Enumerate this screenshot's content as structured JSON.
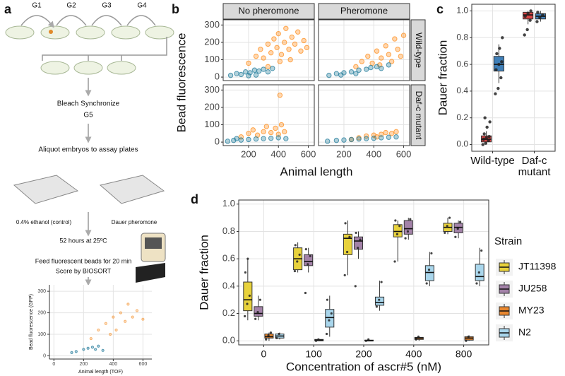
{
  "diagram": {
    "panel_label": "a",
    "generations": [
      "G1",
      "G2",
      "G3",
      "G4"
    ],
    "bleach": "Bleach Synchronize",
    "g5": "G5",
    "aliquot": "Aliquot embryos to assay plates",
    "control_plate": "0.4% ethanol (control)",
    "pheromone_plate": "Dauer pheromone",
    "incubation": "52 hours at 25ºC",
    "feeding": "Feed fluorescent beads for 20 min",
    "scoring": "Score by BIOSORT"
  },
  "chart_data": [
    {
      "type": "scatter",
      "xlabel": "Animal length (TOF)",
      "ylabel": "Bead fluorescence (GFP)",
      "xlim": [
        -30,
        660
      ],
      "ylim": [
        -15,
        330
      ],
      "xticks": [
        0,
        200,
        400,
        600
      ],
      "yticks": [
        0,
        100,
        200,
        300
      ],
      "grid": true,
      "series": [
        {
          "color": "#f5a04a",
          "x": [
            250,
            300,
            350,
            400,
            420,
            450,
            480,
            500,
            530,
            560,
            600,
            380
          ],
          "y": [
            80,
            120,
            150,
            180,
            120,
            200,
            160,
            240,
            180,
            210,
            170,
            100
          ]
        },
        {
          "color": "#2a7f9e",
          "x": [
            150,
            200,
            230,
            260,
            280,
            300,
            330,
            120
          ],
          "y": [
            20,
            30,
            35,
            40,
            30,
            45,
            25,
            15
          ]
        }
      ]
    },
    {
      "type": "facet_scatter",
      "panel_label": "b",
      "xlabel": "Animal length",
      "ylabel": "Bead fluorescence",
      "columns": [
        "No pheromone",
        "Pheromone"
      ],
      "xlim": [
        30,
        640
      ],
      "ylim": [
        -20,
        330
      ],
      "xticks": [
        200,
        400,
        600
      ],
      "yticks": [
        0,
        100,
        200,
        300
      ],
      "grid": true,
      "rows": [
        {
          "label": "Wild-type",
          "cells": [
            {
              "series": [
                {
                  "color": "#ff8c1a",
                  "x": [
                    200,
                    250,
                    280,
                    300,
                    330,
                    350,
                    370,
                    390,
                    400,
                    420,
                    440,
                    450,
                    470,
                    490,
                    510,
                    530,
                    550,
                    570,
                    590,
                    330,
                    410,
                    480
                  ],
                  "y": [
                    80,
                    120,
                    160,
                    110,
                    190,
                    140,
                    220,
                    170,
                    250,
                    130,
                    200,
                    280,
                    160,
                    230,
                    190,
                    260,
                    150,
                    210,
                    170,
                    60,
                    90,
                    100
                  ]
                },
                {
                  "color": "#1f7a99",
                  "x": [
                    80,
                    120,
                    150,
                    180,
                    210,
                    240,
                    270,
                    300,
                    330,
                    360,
                    200,
                    250
                  ],
                  "y": [
                    10,
                    20,
                    15,
                    30,
                    25,
                    40,
                    35,
                    45,
                    30,
                    50,
                    8,
                    12
                  ]
                }
              ]
            },
            {
              "series": [
                {
                  "color": "#ff8c1a",
                  "x": [
                    280,
                    320,
                    360,
                    390,
                    420,
                    450,
                    480,
                    500,
                    520,
                    540,
                    560,
                    580,
                    600,
                    440
                  ],
                  "y": [
                    60,
                    90,
                    120,
                    80,
                    150,
                    110,
                    180,
                    130,
                    90,
                    220,
                    160,
                    120,
                    240,
                    70
                  ]
                },
                {
                  "color": "#1f7a99",
                  "x": [
                    100,
                    150,
                    200,
                    250,
                    300,
                    350,
                    380,
                    420,
                    450,
                    500,
                    180,
                    280
                  ],
                  "y": [
                    10,
                    20,
                    25,
                    30,
                    40,
                    45,
                    55,
                    60,
                    50,
                    70,
                    12,
                    20
                  ]
                }
              ]
            }
          ]
        },
        {
          "label": "Daf-c mutant",
          "cells": [
            {
              "series": [
                {
                  "color": "#ff8c1a",
                  "x": [
                    150,
                    200,
                    230,
                    260,
                    300,
                    320,
                    350,
                    380,
                    400,
                    420,
                    440,
                    410
                  ],
                  "y": [
                    30,
                    50,
                    70,
                    40,
                    60,
                    90,
                    55,
                    80,
                    45,
                    100,
                    60,
                    270
                  ]
                },
                {
                  "color": "#1f7a99",
                  "x": [
                    60,
                    100,
                    150,
                    200,
                    250,
                    300,
                    350,
                    400,
                    450,
                    120
                  ],
                  "y": [
                    5,
                    10,
                    12,
                    15,
                    18,
                    20,
                    22,
                    25,
                    20,
                    20
                  ]
                }
              ]
            },
            {
              "series": [
                {
                  "color": "#ff8c1a",
                  "x": [
                    250,
                    300,
                    350,
                    400,
                    450,
                    480,
                    520,
                    550,
                    420
                  ],
                  "y": [
                    15,
                    25,
                    35,
                    40,
                    45,
                    55,
                    50,
                    60,
                    30
                  ]
                },
                {
                  "color": "#1f7a99",
                  "x": [
                    90,
                    150,
                    200,
                    250,
                    300,
                    350,
                    400,
                    450,
                    500,
                    550
                  ],
                  "y": [
                    5,
                    10,
                    12,
                    15,
                    18,
                    20,
                    22,
                    25,
                    28,
                    30
                  ]
                }
              ]
            }
          ]
        }
      ]
    },
    {
      "type": "box",
      "panel_label": "c",
      "ylabel": "Dauer fraction",
      "categories": [
        "Wild-type",
        "Daf-c\nmutant"
      ],
      "ylim": [
        -0.05,
        1.05
      ],
      "yticks": [
        {
          "value": 0,
          "label": "0.0"
        },
        0.2,
        0.4,
        0.6,
        0.8,
        {
          "value": 1,
          "label": "1.0"
        }
      ],
      "grid": true,
      "series": [
        {
          "color": "#d94545",
          "boxes": [
            {
              "whisker_low": 0,
              "q1": 0.02,
              "median": 0.04,
              "q3": 0.065,
              "whisker_high": 0.1,
              "points": [
                0,
                0.01,
                0.03,
                0.04,
                0.05,
                0.06,
                0.08,
                0.13,
                0.17,
                0.2
              ]
            },
            {
              "whisker_low": 0.9,
              "q1": 0.94,
              "median": 0.97,
              "q3": 0.99,
              "whisker_high": 1,
              "points": [
                0.82,
                0.86,
                0.93,
                0.96,
                0.98,
                1
              ]
            }
          ]
        },
        {
          "color": "#3f7fb8",
          "boxes": [
            {
              "whisker_low": 0.46,
              "q1": 0.55,
              "median": 0.6,
              "q3": 0.66,
              "whisker_high": 0.75,
              "points": [
                0.38,
                0.42,
                0.5,
                0.56,
                0.6,
                0.62,
                0.68,
                0.72,
                0.8
              ]
            },
            {
              "whisker_low": 0.92,
              "q1": 0.94,
              "median": 0.96,
              "q3": 0.98,
              "whisker_high": 1,
              "points": [
                0.92,
                0.95,
                0.97,
                0.99
              ]
            }
          ]
        }
      ]
    },
    {
      "type": "box",
      "panel_label": "d",
      "xlabel": "Concentration of ascr#5 (nM)",
      "ylabel": "Dauer fraction",
      "legend_title": "Strain",
      "categories": [
        "0",
        "100",
        "200",
        "400",
        "800"
      ],
      "ylim": [
        -0.03,
        1.03
      ],
      "yticks": [
        {
          "value": 0,
          "label": "0.0"
        },
        0.2,
        0.4,
        0.6,
        0.8,
        {
          "value": 1,
          "label": "1.0"
        }
      ],
      "grid": true,
      "series": [
        {
          "name": "JT11398",
          "color": "#e8d23c",
          "boxes": [
            {
              "whisker_low": 0.15,
              "q1": 0.22,
              "median": 0.3,
              "q3": 0.43,
              "whisker_high": 0.6,
              "points": [
                0.18,
                0.27,
                0.33,
                0.5,
                0.6
              ]
            },
            {
              "whisker_low": 0.5,
              "q1": 0.52,
              "median": 0.6,
              "q3": 0.68,
              "whisker_high": 0.72,
              "points": [
                0.51,
                0.58,
                0.63,
                0.7
              ]
            },
            {
              "whisker_low": 0.48,
              "q1": 0.63,
              "median": 0.75,
              "q3": 0.78,
              "whisker_high": 0.88,
              "points": [
                0.48,
                0.65,
                0.76,
                0.86
              ]
            },
            {
              "whisker_low": 0.58,
              "q1": 0.76,
              "median": 0.8,
              "q3": 0.85,
              "whisker_high": 0.88,
              "points": [
                0.58,
                0.78,
                0.84,
                0.88
              ]
            },
            {
              "whisker_low": 0.78,
              "q1": 0.8,
              "median": 0.83,
              "q3": 0.86,
              "whisker_high": 0.9,
              "points": [
                0.79,
                0.84,
                0.9
              ]
            }
          ]
        },
        {
          "name": "JU258",
          "color": "#a382a8",
          "boxes": [
            {
              "whisker_low": 0.15,
              "q1": 0.18,
              "median": 0.2,
              "q3": 0.25,
              "whisker_high": 0.33,
              "points": [
                0.16,
                0.21,
                0.3
              ]
            },
            {
              "whisker_low": 0.5,
              "q1": 0.55,
              "median": 0.58,
              "q3": 0.63,
              "whisker_high": 0.68,
              "points": [
                0.35,
                0.56,
                0.62,
                0.67
              ]
            },
            {
              "whisker_low": 0.6,
              "q1": 0.67,
              "median": 0.73,
              "q3": 0.76,
              "whisker_high": 0.8,
              "points": [
                0.4,
                0.68,
                0.74,
                0.79
              ]
            },
            {
              "whisker_low": 0.74,
              "q1": 0.78,
              "median": 0.82,
              "q3": 0.88,
              "whisker_high": 0.9,
              "points": [
                0.75,
                0.8,
                0.89
              ]
            },
            {
              "whisker_low": 0.75,
              "q1": 0.79,
              "median": 0.83,
              "q3": 0.86,
              "whisker_high": 0.88,
              "points": [
                0.76,
                0.82,
                0.87
              ]
            }
          ]
        },
        {
          "name": "MY23",
          "color": "#e8872f",
          "boxes": [
            {
              "whisker_low": 0,
              "q1": 0.02,
              "median": 0.03,
              "q3": 0.05,
              "whisker_high": 0.06,
              "points": [
                0.01,
                0.04,
                0.06
              ]
            },
            {
              "whisker_low": 0,
              "q1": 0,
              "median": 0.005,
              "q3": 0.01,
              "whisker_high": 0.01,
              "points": [
                0,
                0.01
              ]
            },
            {
              "whisker_low": 0,
              "q1": 0,
              "median": 0,
              "q3": 0.005,
              "whisker_high": 0.01,
              "points": [
                0,
                0.01
              ]
            },
            {
              "whisker_low": 0,
              "q1": 0.01,
              "median": 0.02,
              "q3": 0.025,
              "whisker_high": 0.03,
              "points": [
                0.01,
                0.03
              ]
            },
            {
              "whisker_low": 0,
              "q1": 0.005,
              "median": 0.02,
              "q3": 0.03,
              "whisker_high": 0.04,
              "points": [
                0,
                0.03
              ]
            }
          ]
        },
        {
          "name": "N2",
          "color": "#a9d6ec",
          "boxes": [
            {
              "whisker_low": 0.01,
              "q1": 0.02,
              "median": 0.035,
              "q3": 0.05,
              "whisker_high": 0.06,
              "points": [
                0.02,
                0.05
              ]
            },
            {
              "whisker_low": 0.03,
              "q1": 0.1,
              "median": 0.17,
              "q3": 0.23,
              "whisker_high": 0.33,
              "points": [
                0.05,
                0.15,
                0.2,
                0.3
              ]
            },
            {
              "whisker_low": 0.22,
              "q1": 0.26,
              "median": 0.28,
              "q3": 0.32,
              "whisker_high": 0.44,
              "points": [
                0.25,
                0.3,
                0.43
              ]
            },
            {
              "whisker_low": 0.4,
              "q1": 0.44,
              "median": 0.5,
              "q3": 0.55,
              "whisker_high": 0.65,
              "points": [
                0.42,
                0.52,
                0.64
              ]
            },
            {
              "whisker_low": 0.4,
              "q1": 0.44,
              "median": 0.47,
              "q3": 0.56,
              "whisker_high": 0.68,
              "points": [
                0.42,
                0.5,
                0.66
              ]
            }
          ]
        }
      ]
    }
  ]
}
